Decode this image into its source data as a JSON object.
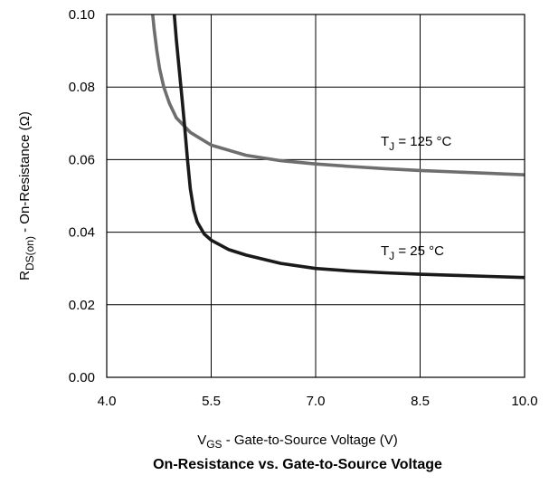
{
  "chart_data": {
    "type": "line",
    "title": "On-Resistance vs. Gate-to-Source Voltage",
    "xlabel": {
      "symbol": "V",
      "subscript": "GS",
      "text": " - Gate-to-Source Voltage (V)"
    },
    "ylabel": {
      "symbol": "R",
      "subscript": "DS(on)",
      "text": " - On-Resistance (Ω)"
    },
    "xlim": [
      4.0,
      10.0
    ],
    "ylim": [
      0.0,
      0.1
    ],
    "grid": true,
    "x_ticks": [
      "4.0",
      "5.5",
      "7.0",
      "8.5",
      "10.0"
    ],
    "y_ticks": [
      "0.00",
      "0.02",
      "0.04",
      "0.06",
      "0.08",
      "0.10"
    ],
    "series": [
      {
        "label": {
          "symbol": "T",
          "subscript": "J",
          "text": " = 125 °C"
        },
        "color": "#6e6e6e",
        "x": [
          4.66,
          4.68,
          4.72,
          4.76,
          4.82,
          4.9,
          5.0,
          5.2,
          5.5,
          6.0,
          6.5,
          7.0,
          7.5,
          8.0,
          8.5,
          9.0,
          9.5,
          10.0
        ],
        "y": [
          0.1,
          0.096,
          0.09,
          0.085,
          0.08,
          0.0755,
          0.0715,
          0.0675,
          0.064,
          0.0612,
          0.0597,
          0.0588,
          0.0581,
          0.0575,
          0.057,
          0.0566,
          0.0562,
          0.0558
        ]
      },
      {
        "label": {
          "symbol": "T",
          "subscript": "J",
          "text": " = 25 °C"
        },
        "color": "#1a1a1a",
        "x": [
          4.97,
          5.0,
          5.04,
          5.08,
          5.12,
          5.16,
          5.2,
          5.25,
          5.3,
          5.4,
          5.5,
          5.75,
          6.0,
          6.5,
          7.0,
          7.5,
          8.0,
          8.5,
          9.0,
          9.5,
          10.0
        ],
        "y": [
          0.1,
          0.093,
          0.085,
          0.077,
          0.069,
          0.06,
          0.052,
          0.046,
          0.0428,
          0.0395,
          0.0378,
          0.0352,
          0.0337,
          0.0314,
          0.03,
          0.0293,
          0.0288,
          0.0284,
          0.0281,
          0.0278,
          0.0275
        ]
      }
    ]
  }
}
